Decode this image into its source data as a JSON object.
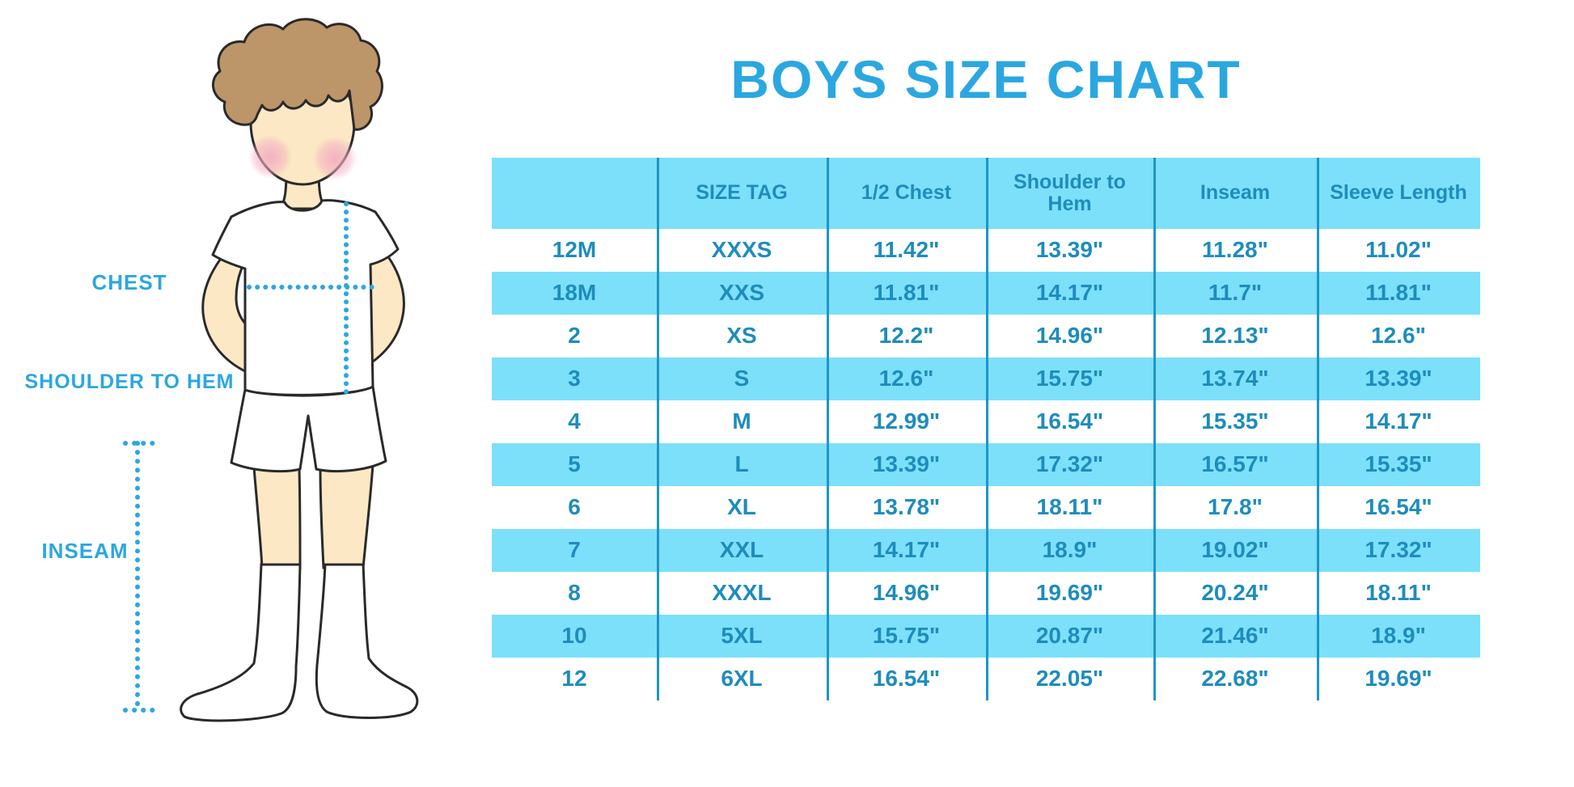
{
  "page_title": "BOYS SIZE CHART",
  "diagram": {
    "labels": {
      "chest": "CHEST",
      "shoulder_to_hem": "SHOULDER TO HEM",
      "inseam": "INSEAM"
    }
  },
  "chart_data": {
    "type": "table",
    "title": "BOYS SIZE CHART",
    "columns": [
      "",
      "SIZE TAG",
      "1/2 Chest",
      "Shoulder to Hem",
      "Inseam",
      "Sleeve Length"
    ],
    "rows": [
      [
        "12M",
        "XXXS",
        "11.42\"",
        "13.39\"",
        "11.28\"",
        "11.02\""
      ],
      [
        "18M",
        "XXS",
        "11.81\"",
        "14.17\"",
        "11.7\"",
        "11.81\""
      ],
      [
        "2",
        "XS",
        "12.2\"",
        "14.96\"",
        "12.13\"",
        "12.6\""
      ],
      [
        "3",
        "S",
        "12.6\"",
        "15.75\"",
        "13.74\"",
        "13.39\""
      ],
      [
        "4",
        "M",
        "12.99\"",
        "16.54\"",
        "15.35\"",
        "14.17\""
      ],
      [
        "5",
        "L",
        "13.39\"",
        "17.32\"",
        "16.57\"",
        "15.35\""
      ],
      [
        "6",
        "XL",
        "13.78\"",
        "18.11\"",
        "17.8\"",
        "16.54\""
      ],
      [
        "7",
        "XXL",
        "14.17\"",
        "18.9\"",
        "19.02\"",
        "17.32\""
      ],
      [
        "8",
        "XXXL",
        "14.96\"",
        "19.69\"",
        "20.24\"",
        "18.11\""
      ],
      [
        "10",
        "5XL",
        "15.75\"",
        "20.87\"",
        "21.46\"",
        "18.9\""
      ],
      [
        "12",
        "6XL",
        "16.54\"",
        "22.05\"",
        "22.68\"",
        "19.69\""
      ]
    ],
    "units": "inches",
    "row_striping": "header light blue, then alternating white / light blue data rows",
    "grid": "vertical column separators only, no horizontal lines",
    "legend_position": "none"
  },
  "colors": {
    "accent_blue": "#2BA7E0",
    "stripe_blue": "#7CE0FA",
    "table_text_blue": "#1E8CBC",
    "separator_blue": "#1E96C6",
    "skin": "#FCE8C4",
    "hair_brown": "#BC9569",
    "blush_pink": "#F2ABC0",
    "outline": "#2A2A2A"
  }
}
